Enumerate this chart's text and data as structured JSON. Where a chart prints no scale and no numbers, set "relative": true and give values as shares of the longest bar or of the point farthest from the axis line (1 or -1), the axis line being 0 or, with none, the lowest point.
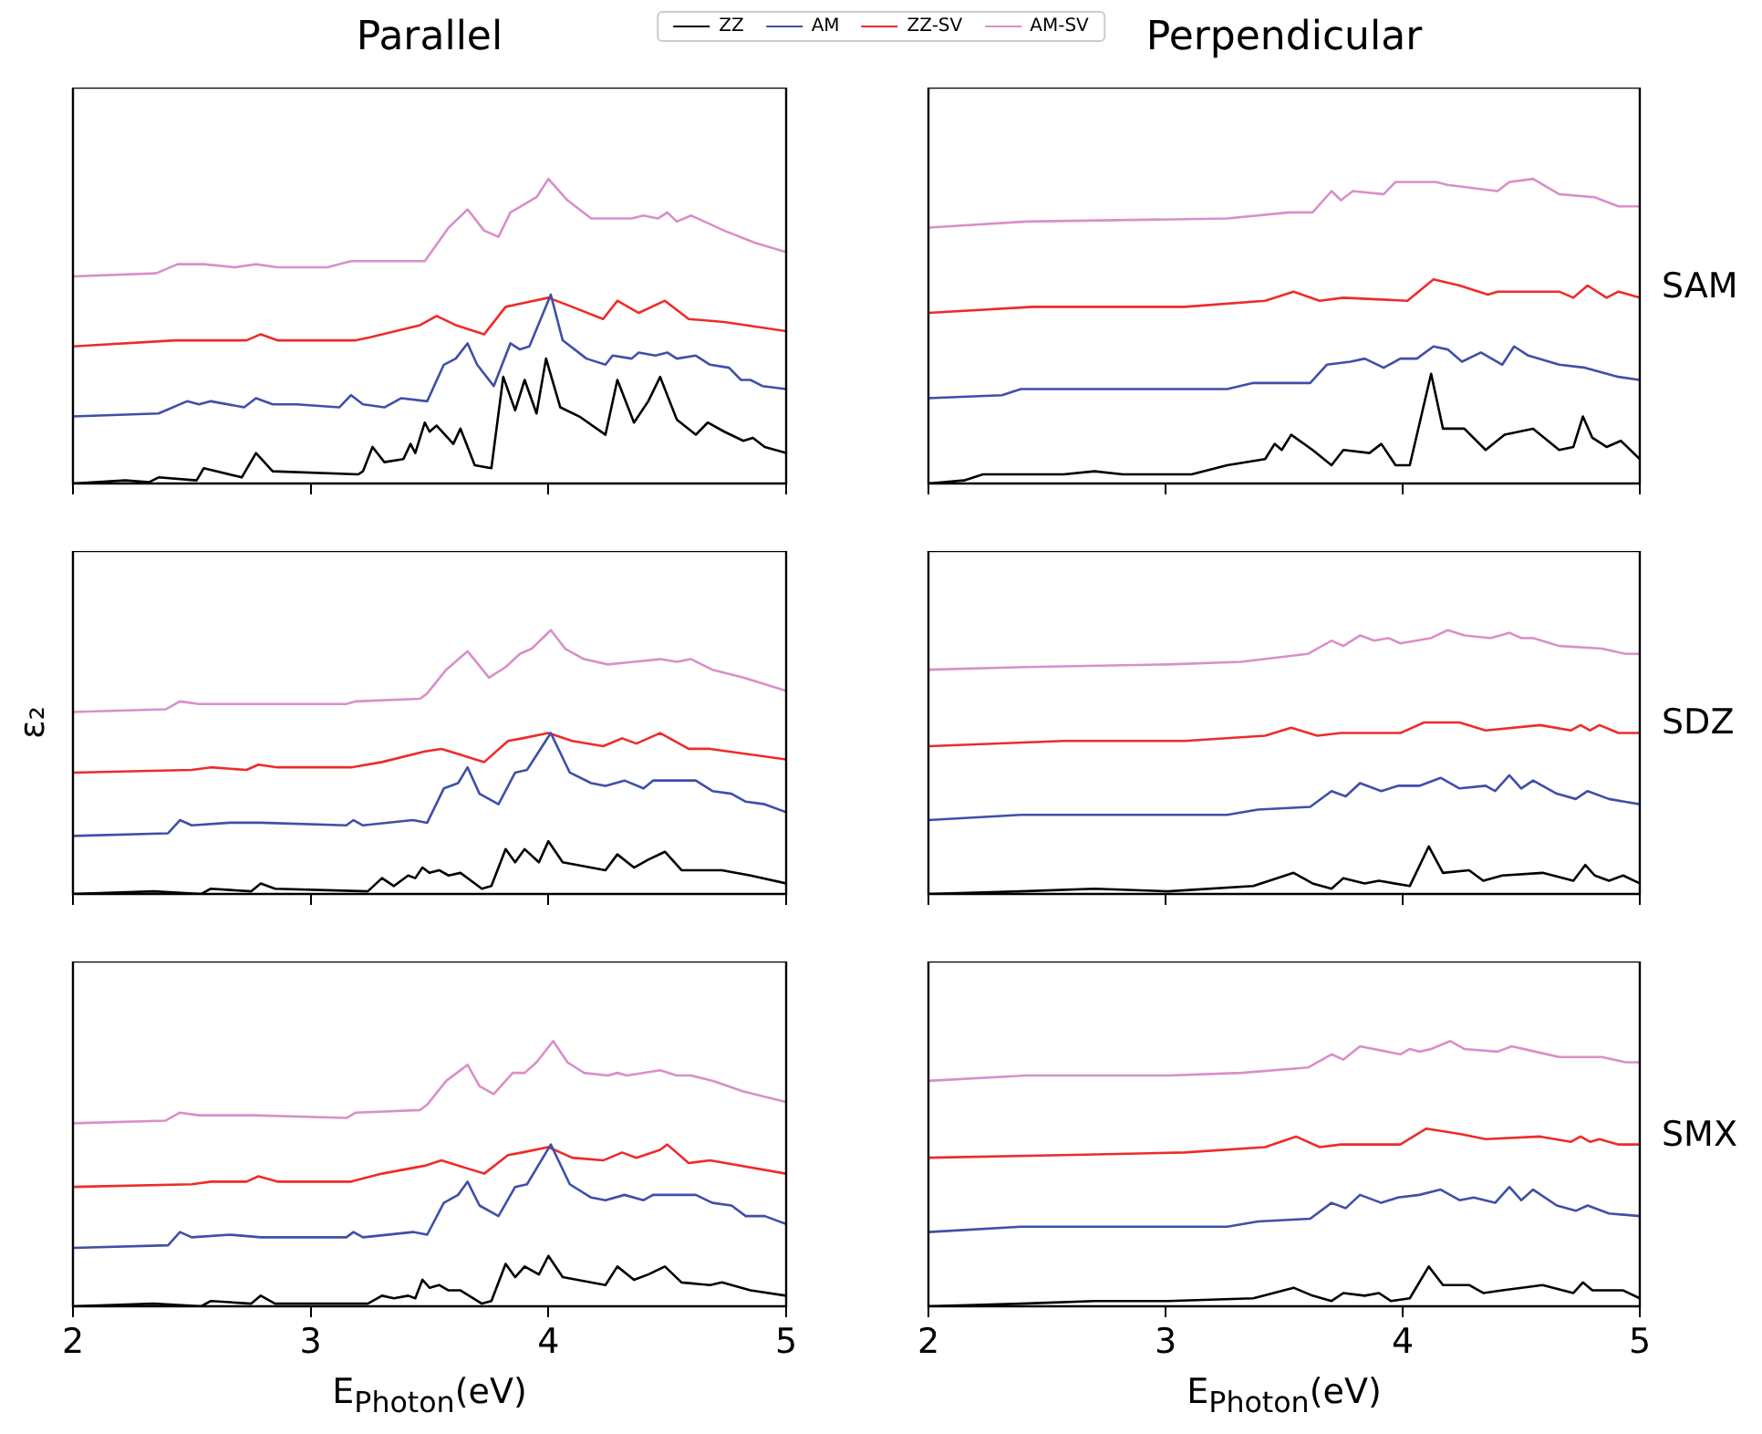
{
  "chart_data": [
    {
      "type": "line",
      "title": "Parallel",
      "relative": true,
      "xlim": [
        2,
        5
      ],
      "xticks": [
        2,
        3,
        4,
        5
      ],
      "tick_labels": false,
      "legend": "top",
      "marker": "none",
      "line_style": "solid",
      "series": [
        {
          "name": "ZZ",
          "color": "#000000",
          "x": [
            2.0,
            2.22,
            2.32,
            2.36,
            2.52,
            2.55,
            2.71,
            2.77,
            2.84,
            3.2,
            3.22,
            3.26,
            3.31,
            3.39,
            3.42,
            3.44,
            3.48,
            3.5,
            3.53,
            3.6,
            3.63,
            3.69,
            3.76,
            3.81,
            3.86,
            3.9,
            3.95,
            3.99,
            4.05,
            4.13,
            4.24,
            4.29,
            4.36,
            4.42,
            4.47,
            4.54,
            4.62,
            4.67,
            4.74,
            4.82,
            4.86,
            4.91,
            5.0
          ],
          "values": [
            0,
            0.01,
            0.004,
            0.02,
            0.01,
            0.05,
            0.02,
            0.1,
            0.04,
            0.03,
            0.04,
            0.12,
            0.07,
            0.08,
            0.13,
            0.1,
            0.2,
            0.17,
            0.19,
            0.13,
            0.18,
            0.06,
            0.05,
            0.35,
            0.24,
            0.34,
            0.23,
            0.41,
            0.25,
            0.22,
            0.16,
            0.34,
            0.2,
            0.27,
            0.35,
            0.21,
            0.16,
            0.2,
            0.17,
            0.14,
            0.15,
            0.12,
            0.1
          ]
        },
        {
          "name": "AM",
          "color": "#3f4fa8",
          "x": [
            2.0,
            2.36,
            2.48,
            2.53,
            2.58,
            2.72,
            2.77,
            2.84,
            2.94,
            3.12,
            3.17,
            3.22,
            3.31,
            3.38,
            3.49,
            3.56,
            3.61,
            3.66,
            3.7,
            3.77,
            3.84,
            3.88,
            3.92,
            4.01,
            4.06,
            4.16,
            4.24,
            4.27,
            4.35,
            4.38,
            4.45,
            4.5,
            4.54,
            4.62,
            4.68,
            4.76,
            4.81,
            4.85,
            4.9,
            5.0
          ],
          "values": [
            0.22,
            0.23,
            0.27,
            0.26,
            0.27,
            0.25,
            0.28,
            0.26,
            0.26,
            0.25,
            0.29,
            0.26,
            0.25,
            0.28,
            0.27,
            0.39,
            0.41,
            0.46,
            0.39,
            0.32,
            0.46,
            0.44,
            0.45,
            0.62,
            0.47,
            0.41,
            0.39,
            0.42,
            0.41,
            0.43,
            0.42,
            0.43,
            0.41,
            0.42,
            0.39,
            0.38,
            0.34,
            0.34,
            0.32,
            0.31
          ]
        },
        {
          "name": "ZZ-SV",
          "color": "#ee2b2b",
          "x": [
            2.0,
            2.43,
            2.73,
            2.79,
            2.86,
            3.19,
            3.25,
            3.46,
            3.53,
            3.61,
            3.73,
            3.82,
            3.88,
            4.0,
            4.1,
            4.23,
            4.29,
            4.38,
            4.49,
            4.59,
            4.74,
            5.0
          ],
          "values": [
            0.45,
            0.47,
            0.47,
            0.49,
            0.47,
            0.47,
            0.48,
            0.52,
            0.55,
            0.52,
            0.49,
            0.58,
            0.59,
            0.61,
            0.58,
            0.54,
            0.6,
            0.56,
            0.6,
            0.54,
            0.53,
            0.5
          ]
        },
        {
          "name": "AM-SV",
          "color": "#d98fc9",
          "x": [
            2.0,
            2.35,
            2.44,
            2.55,
            2.68,
            2.77,
            2.86,
            3.07,
            3.17,
            3.48,
            3.58,
            3.66,
            3.73,
            3.79,
            3.84,
            3.95,
            4.0,
            4.08,
            4.18,
            4.27,
            4.35,
            4.4,
            4.46,
            4.5,
            4.54,
            4.6,
            4.74,
            4.87,
            5.0
          ],
          "values": [
            0.68,
            0.69,
            0.72,
            0.72,
            0.71,
            0.72,
            0.71,
            0.71,
            0.73,
            0.73,
            0.84,
            0.9,
            0.83,
            0.81,
            0.89,
            0.94,
            1,
            0.93,
            0.87,
            0.87,
            0.87,
            0.88,
            0.87,
            0.89,
            0.86,
            0.88,
            0.83,
            0.79,
            0.76
          ]
        }
      ]
    },
    {
      "type": "line",
      "title": "Perpendicular",
      "y2label": "SAM",
      "relative": true,
      "xlim": [
        2,
        5
      ],
      "xticks": [
        2,
        3,
        4,
        5
      ],
      "tick_labels": false,
      "marker": "none",
      "line_style": "solid",
      "series": [
        {
          "color": "#000000",
          "x": [
            2.0,
            2.15,
            2.23,
            2.57,
            2.7,
            2.82,
            3.11,
            3.26,
            3.42,
            3.46,
            3.49,
            3.53,
            3.62,
            3.7,
            3.75,
            3.86,
            3.91,
            3.97,
            4.03,
            4.12,
            4.17,
            4.26,
            4.35,
            4.43,
            4.55,
            4.66,
            4.72,
            4.76,
            4.8,
            4.86,
            4.92,
            5.0
          ],
          "values": [
            0,
            0.01,
            0.03,
            0.03,
            0.04,
            0.03,
            0.03,
            0.06,
            0.08,
            0.13,
            0.11,
            0.16,
            0.11,
            0.06,
            0.11,
            0.1,
            0.13,
            0.06,
            0.06,
            0.36,
            0.18,
            0.18,
            0.11,
            0.16,
            0.18,
            0.11,
            0.12,
            0.22,
            0.15,
            0.12,
            0.14,
            0.08
          ]
        },
        {
          "color": "#3f4fa8",
          "x": [
            2.0,
            2.31,
            2.39,
            2.95,
            3.26,
            3.37,
            3.61,
            3.68,
            3.78,
            3.84,
            3.92,
            3.99,
            4.06,
            4.13,
            4.19,
            4.25,
            4.33,
            4.42,
            4.47,
            4.53,
            4.66,
            4.77,
            4.91,
            5.0
          ],
          "values": [
            0.28,
            0.29,
            0.31,
            0.31,
            0.31,
            0.33,
            0.33,
            0.39,
            0.4,
            0.41,
            0.38,
            0.41,
            0.41,
            0.45,
            0.44,
            0.4,
            0.43,
            0.39,
            0.45,
            0.42,
            0.39,
            0.38,
            0.35,
            0.34
          ]
        },
        {
          "color": "#ee2b2b",
          "x": [
            2.0,
            2.44,
            3.08,
            3.42,
            3.54,
            3.65,
            3.75,
            4.02,
            4.13,
            4.24,
            4.36,
            4.4,
            4.66,
            4.72,
            4.78,
            4.86,
            4.91,
            5.0
          ],
          "values": [
            0.56,
            0.58,
            0.58,
            0.6,
            0.63,
            0.6,
            0.61,
            0.6,
            0.67,
            0.65,
            0.62,
            0.63,
            0.63,
            0.61,
            0.65,
            0.61,
            0.63,
            0.61
          ]
        },
        {
          "color": "#d98fc9",
          "x": [
            2.0,
            2.41,
            3.26,
            3.52,
            3.62,
            3.7,
            3.74,
            3.79,
            3.92,
            3.97,
            4.14,
            4.19,
            4.4,
            4.45,
            4.55,
            4.66,
            4.81,
            4.91,
            5.0
          ],
          "values": [
            0.84,
            0.86,
            0.87,
            0.89,
            0.89,
            0.96,
            0.93,
            0.96,
            0.95,
            0.99,
            0.99,
            0.98,
            0.96,
            0.99,
            1,
            0.95,
            0.94,
            0.91,
            0.91
          ]
        }
      ]
    },
    {
      "type": "line",
      "ylabel": "ε₂",
      "relative": true,
      "xlim": [
        2,
        5
      ],
      "xticks": [
        2,
        3,
        4,
        5
      ],
      "tick_labels": false,
      "marker": "none",
      "line_style": "solid",
      "series": [
        {
          "color": "#000000",
          "x": [
            2.0,
            2.34,
            2.54,
            2.58,
            2.75,
            2.79,
            2.85,
            3.24,
            3.3,
            3.35,
            3.41,
            3.44,
            3.47,
            3.5,
            3.54,
            3.58,
            3.63,
            3.72,
            3.76,
            3.82,
            3.86,
            3.9,
            3.96,
            4.0,
            4.06,
            4.24,
            4.29,
            4.36,
            4.42,
            4.49,
            4.56,
            4.68,
            4.73,
            4.85,
            5.0
          ],
          "values": [
            0,
            0.01,
            0,
            0.02,
            0.01,
            0.04,
            0.02,
            0.01,
            0.06,
            0.03,
            0.07,
            0.06,
            0.1,
            0.08,
            0.09,
            0.07,
            0.08,
            0.02,
            0.03,
            0.17,
            0.12,
            0.17,
            0.12,
            0.2,
            0.12,
            0.09,
            0.15,
            0.1,
            0.13,
            0.16,
            0.09,
            0.09,
            0.09,
            0.07,
            0.04
          ]
        },
        {
          "color": "#3f4fa8",
          "x": [
            2.0,
            2.4,
            2.45,
            2.5,
            2.66,
            2.79,
            3.15,
            3.18,
            3.22,
            3.43,
            3.49,
            3.56,
            3.62,
            3.66,
            3.71,
            3.79,
            3.86,
            3.91,
            4.01,
            4.09,
            4.18,
            4.24,
            4.32,
            4.4,
            4.44,
            4.51,
            4.62,
            4.69,
            4.77,
            4.83,
            4.91,
            5.0
          ],
          "values": [
            0.22,
            0.23,
            0.28,
            0.26,
            0.27,
            0.27,
            0.26,
            0.28,
            0.26,
            0.28,
            0.27,
            0.4,
            0.42,
            0.48,
            0.38,
            0.34,
            0.46,
            0.47,
            0.61,
            0.46,
            0.42,
            0.41,
            0.43,
            0.4,
            0.43,
            0.43,
            0.43,
            0.39,
            0.38,
            0.35,
            0.34,
            0.31
          ]
        },
        {
          "color": "#ee2b2b",
          "x": [
            2.0,
            2.5,
            2.58,
            2.73,
            2.78,
            2.86,
            3.17,
            3.3,
            3.48,
            3.55,
            3.73,
            3.83,
            3.89,
            4.0,
            4.1,
            4.23,
            4.31,
            4.37,
            4.47,
            4.59,
            4.68,
            5.0
          ],
          "values": [
            0.46,
            0.47,
            0.48,
            0.47,
            0.49,
            0.48,
            0.48,
            0.5,
            0.54,
            0.55,
            0.5,
            0.58,
            0.59,
            0.61,
            0.58,
            0.56,
            0.59,
            0.57,
            0.61,
            0.55,
            0.55,
            0.51
          ]
        },
        {
          "color": "#d98fc9",
          "x": [
            2.0,
            2.39,
            2.45,
            2.53,
            2.76,
            3.15,
            3.19,
            3.46,
            3.49,
            3.57,
            3.66,
            3.75,
            3.82,
            3.88,
            3.93,
            4.01,
            4.07,
            4.15,
            4.25,
            4.36,
            4.47,
            4.54,
            4.6,
            4.69,
            4.82,
            5.0
          ],
          "values": [
            0.69,
            0.7,
            0.73,
            0.72,
            0.72,
            0.72,
            0.73,
            0.74,
            0.76,
            0.85,
            0.92,
            0.82,
            0.86,
            0.91,
            0.93,
            1,
            0.93,
            0.89,
            0.87,
            0.88,
            0.89,
            0.88,
            0.89,
            0.85,
            0.82,
            0.77
          ]
        }
      ]
    },
    {
      "type": "line",
      "y2label": "SDZ",
      "relative": true,
      "xlim": [
        2,
        5
      ],
      "xticks": [
        2,
        3,
        4,
        5
      ],
      "tick_labels": false,
      "marker": "none",
      "line_style": "solid",
      "series": [
        {
          "color": "#000000",
          "x": [
            2.0,
            2.39,
            2.7,
            3.01,
            3.37,
            3.47,
            3.54,
            3.62,
            3.7,
            3.75,
            3.84,
            3.9,
            4.03,
            4.11,
            4.17,
            4.28,
            4.34,
            4.42,
            4.59,
            4.72,
            4.77,
            4.81,
            4.87,
            4.93,
            5.0
          ],
          "values": [
            0,
            0.01,
            0.02,
            0.01,
            0.03,
            0.06,
            0.08,
            0.04,
            0.02,
            0.06,
            0.04,
            0.05,
            0.03,
            0.18,
            0.08,
            0.09,
            0.05,
            0.07,
            0.08,
            0.05,
            0.11,
            0.07,
            0.05,
            0.07,
            0.04
          ]
        },
        {
          "color": "#3f4fa8",
          "x": [
            2.0,
            2.39,
            2.44,
            3.26,
            3.39,
            3.61,
            3.7,
            3.76,
            3.82,
            3.91,
            3.98,
            4.07,
            4.16,
            4.24,
            4.35,
            4.39,
            4.45,
            4.5,
            4.55,
            4.65,
            4.73,
            4.78,
            4.87,
            5.0
          ],
          "values": [
            0.28,
            0.3,
            0.3,
            0.3,
            0.32,
            0.33,
            0.39,
            0.37,
            0.42,
            0.39,
            0.41,
            0.41,
            0.44,
            0.4,
            0.41,
            0.39,
            0.45,
            0.4,
            0.43,
            0.38,
            0.36,
            0.39,
            0.36,
            0.34
          ]
        },
        {
          "color": "#ee2b2b",
          "x": [
            2.0,
            2.57,
            3.08,
            3.42,
            3.53,
            3.64,
            3.74,
            3.99,
            4.09,
            4.24,
            4.35,
            4.58,
            4.71,
            4.75,
            4.79,
            4.83,
            4.91,
            5.0
          ],
          "values": [
            0.56,
            0.58,
            0.58,
            0.6,
            0.63,
            0.6,
            0.61,
            0.61,
            0.65,
            0.65,
            0.62,
            0.64,
            0.62,
            0.64,
            0.62,
            0.64,
            0.61,
            0.61
          ]
        },
        {
          "color": "#d98fc9",
          "x": [
            2.0,
            2.41,
            3.01,
            3.32,
            3.6,
            3.7,
            3.75,
            3.82,
            3.88,
            3.94,
            3.99,
            4.12,
            4.19,
            4.26,
            4.37,
            4.45,
            4.5,
            4.55,
            4.66,
            4.84,
            4.94,
            5.0
          ],
          "values": [
            0.85,
            0.86,
            0.87,
            0.88,
            0.91,
            0.96,
            0.94,
            0.98,
            0.96,
            0.97,
            0.95,
            0.97,
            1,
            0.98,
            0.97,
            0.99,
            0.97,
            0.97,
            0.94,
            0.93,
            0.91,
            0.91
          ]
        }
      ]
    },
    {
      "type": "line",
      "xlabel": "E$_{Photon}$(eV)",
      "relative": true,
      "xlim": [
        2,
        5
      ],
      "xticks": [
        2,
        3,
        4,
        5
      ],
      "tick_labels": "x",
      "marker": "none",
      "line_style": "solid",
      "series": [
        {
          "color": "#000000",
          "x": [
            2.0,
            2.34,
            2.54,
            2.58,
            2.75,
            2.79,
            2.85,
            3.24,
            3.3,
            3.35,
            3.41,
            3.44,
            3.47,
            3.5,
            3.54,
            3.58,
            3.63,
            3.72,
            3.76,
            3.82,
            3.86,
            3.9,
            3.96,
            4.0,
            4.06,
            4.24,
            4.29,
            4.36,
            4.42,
            4.49,
            4.56,
            4.68,
            4.73,
            4.85,
            5.0
          ],
          "values": [
            0,
            0.01,
            0,
            0.02,
            0.01,
            0.04,
            0.01,
            0.01,
            0.04,
            0.03,
            0.04,
            0.03,
            0.1,
            0.07,
            0.08,
            0.06,
            0.06,
            0.01,
            0.02,
            0.16,
            0.11,
            0.15,
            0.12,
            0.19,
            0.11,
            0.08,
            0.15,
            0.1,
            0.12,
            0.15,
            0.09,
            0.08,
            0.09,
            0.06,
            0.04
          ]
        },
        {
          "color": "#3f4fa8",
          "x": [
            2.0,
            2.4,
            2.45,
            2.5,
            2.66,
            2.79,
            3.15,
            3.18,
            3.22,
            3.43,
            3.49,
            3.56,
            3.62,
            3.66,
            3.71,
            3.79,
            3.86,
            3.91,
            4.01,
            4.09,
            4.18,
            4.24,
            4.32,
            4.4,
            4.44,
            4.51,
            4.62,
            4.69,
            4.77,
            4.83,
            4.91,
            5.0
          ],
          "values": [
            0.22,
            0.23,
            0.28,
            0.26,
            0.27,
            0.26,
            0.26,
            0.28,
            0.26,
            0.28,
            0.27,
            0.39,
            0.42,
            0.47,
            0.38,
            0.34,
            0.45,
            0.46,
            0.61,
            0.46,
            0.41,
            0.4,
            0.42,
            0.4,
            0.42,
            0.42,
            0.42,
            0.39,
            0.38,
            0.34,
            0.34,
            0.31
          ]
        },
        {
          "color": "#ee2b2b",
          "x": [
            2.0,
            2.5,
            2.58,
            2.73,
            2.78,
            2.86,
            3.17,
            3.3,
            3.48,
            3.55,
            3.73,
            3.83,
            3.89,
            4.0,
            4.1,
            4.23,
            4.31,
            4.37,
            4.47,
            4.5,
            4.59,
            4.68,
            5.0
          ],
          "values": [
            0.45,
            0.46,
            0.47,
            0.47,
            0.49,
            0.47,
            0.47,
            0.5,
            0.53,
            0.55,
            0.5,
            0.57,
            0.58,
            0.6,
            0.56,
            0.55,
            0.58,
            0.56,
            0.59,
            0.61,
            0.54,
            0.55,
            0.5
          ]
        },
        {
          "color": "#d98fc9",
          "x": [
            2.0,
            2.39,
            2.45,
            2.53,
            2.76,
            3.15,
            3.19,
            3.46,
            3.49,
            3.57,
            3.66,
            3.71,
            3.77,
            3.85,
            3.9,
            3.95,
            4.02,
            4.08,
            4.15,
            4.25,
            4.29,
            4.33,
            4.47,
            4.54,
            4.6,
            4.69,
            4.82,
            5.0
          ],
          "values": [
            0.69,
            0.7,
            0.73,
            0.72,
            0.72,
            0.71,
            0.73,
            0.74,
            0.76,
            0.85,
            0.91,
            0.83,
            0.8,
            0.88,
            0.88,
            0.92,
            1,
            0.92,
            0.88,
            0.87,
            0.88,
            0.87,
            0.89,
            0.87,
            0.87,
            0.85,
            0.81,
            0.77
          ]
        }
      ]
    },
    {
      "type": "line",
      "xlabel": "E$_{Photon}$(eV)",
      "y2label": "SMX",
      "relative": true,
      "xlim": [
        2,
        5
      ],
      "xticks": [
        2,
        3,
        4,
        5
      ],
      "tick_labels": "x",
      "marker": "none",
      "line_style": "solid",
      "series": [
        {
          "color": "#000000",
          "x": [
            2.0,
            2.39,
            2.7,
            3.01,
            3.37,
            3.54,
            3.62,
            3.7,
            3.75,
            3.84,
            3.9,
            3.95,
            4.03,
            4.11,
            4.17,
            4.28,
            4.34,
            4.42,
            4.59,
            4.72,
            4.76,
            4.8,
            4.87,
            4.93,
            5.0
          ],
          "values": [
            0,
            0.01,
            0.02,
            0.02,
            0.03,
            0.07,
            0.04,
            0.02,
            0.05,
            0.04,
            0.05,
            0.02,
            0.03,
            0.15,
            0.08,
            0.08,
            0.05,
            0.06,
            0.08,
            0.05,
            0.09,
            0.06,
            0.06,
            0.06,
            0.03
          ]
        },
        {
          "color": "#3f4fa8",
          "x": [
            2.0,
            2.39,
            2.44,
            3.26,
            3.39,
            3.61,
            3.7,
            3.76,
            3.82,
            3.91,
            3.98,
            4.07,
            4.16,
            4.24,
            4.3,
            4.39,
            4.45,
            4.5,
            4.55,
            4.65,
            4.73,
            4.78,
            4.87,
            5.0
          ],
          "values": [
            0.28,
            0.3,
            0.3,
            0.3,
            0.32,
            0.33,
            0.39,
            0.37,
            0.42,
            0.39,
            0.41,
            0.42,
            0.44,
            0.4,
            0.41,
            0.39,
            0.45,
            0.4,
            0.44,
            0.38,
            0.36,
            0.38,
            0.35,
            0.34
          ]
        },
        {
          "color": "#ee2b2b",
          "x": [
            2.0,
            2.57,
            3.08,
            3.42,
            3.55,
            3.65,
            3.74,
            3.99,
            4.1,
            4.24,
            4.35,
            4.58,
            4.71,
            4.75,
            4.79,
            4.83,
            4.91,
            5.0
          ],
          "values": [
            0.56,
            0.57,
            0.58,
            0.6,
            0.64,
            0.6,
            0.61,
            0.61,
            0.67,
            0.65,
            0.63,
            0.64,
            0.62,
            0.64,
            0.62,
            0.63,
            0.61,
            0.61
          ]
        },
        {
          "color": "#d98fc9",
          "x": [
            2.0,
            2.41,
            3.01,
            3.32,
            3.6,
            3.7,
            3.75,
            3.82,
            3.99,
            4.03,
            4.07,
            4.12,
            4.2,
            4.26,
            4.4,
            4.46,
            4.56,
            4.66,
            4.84,
            4.94,
            5.0
          ],
          "values": [
            0.85,
            0.87,
            0.87,
            0.88,
            0.9,
            0.95,
            0.93,
            0.98,
            0.95,
            0.97,
            0.96,
            0.97,
            1,
            0.97,
            0.96,
            0.98,
            0.96,
            0.94,
            0.94,
            0.92,
            0.92
          ]
        }
      ]
    }
  ]
}
